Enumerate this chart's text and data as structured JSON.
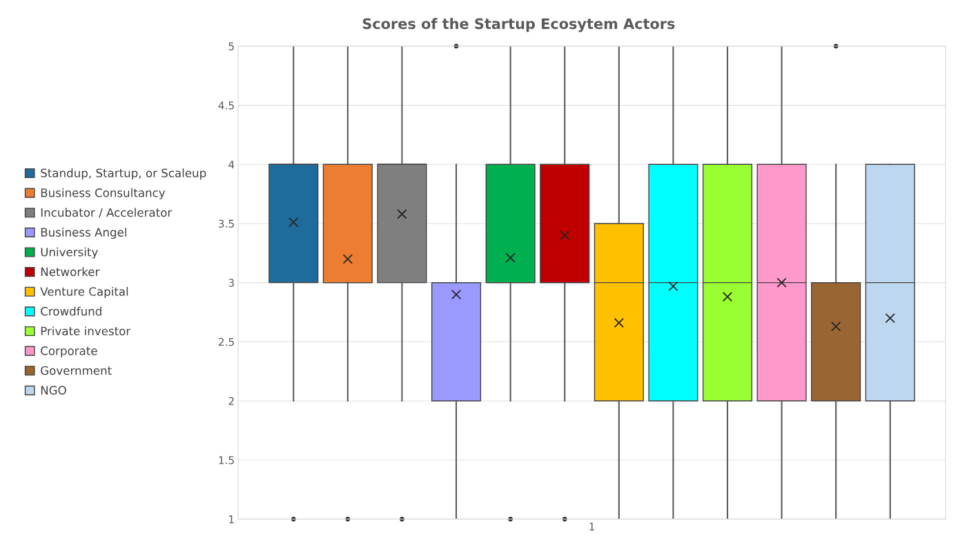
{
  "chart_data": {
    "type": "box",
    "title": "Scores of the Startup Ecosytem Actors",
    "categories": [
      "1"
    ],
    "ylim": [
      1,
      5
    ],
    "yticks": [
      1,
      1.5,
      2,
      2.5,
      3,
      3.5,
      4,
      4.5,
      5
    ],
    "grid": "y",
    "legend": "left",
    "series": [
      {
        "name": "Standup, Startup, or Scaleup",
        "color": "#1f6b9c",
        "boxes": [
          {
            "low": 2,
            "q1": 3,
            "median": 4,
            "q3": 4,
            "high": 5,
            "mean": 3.51,
            "outliers": [
              1
            ]
          }
        ]
      },
      {
        "name": "Business Consultancy",
        "color": "#ed7d31",
        "boxes": [
          {
            "low": 2,
            "q1": 3,
            "median": 3,
            "q3": 4,
            "high": 5,
            "mean": 3.2,
            "outliers": [
              1
            ]
          }
        ]
      },
      {
        "name": "Incubator / Accelerator",
        "color": "#7f7f7f",
        "boxes": [
          {
            "low": 2,
            "q1": 3,
            "median": 4,
            "q3": 4,
            "high": 5,
            "mean": 3.58,
            "outliers": [
              1
            ]
          }
        ]
      },
      {
        "name": "Business Angel",
        "color": "#9999ff",
        "boxes": [
          {
            "low": 1,
            "q1": 2,
            "median": 3,
            "q3": 3,
            "high": 4,
            "mean": 2.9,
            "outliers": [
              5
            ]
          }
        ]
      },
      {
        "name": "University",
        "color": "#00b050",
        "boxes": [
          {
            "low": 2,
            "q1": 3,
            "median": 3,
            "q3": 4,
            "high": 5,
            "mean": 3.21,
            "outliers": [
              1
            ]
          }
        ]
      },
      {
        "name": "Networker",
        "color": "#c00000",
        "boxes": [
          {
            "low": 2,
            "q1": 3,
            "median": 3,
            "q3": 4,
            "high": 5,
            "mean": 3.4,
            "outliers": [
              1
            ]
          }
        ]
      },
      {
        "name": "Venture Capital",
        "color": "#ffc000",
        "boxes": [
          {
            "low": 1,
            "q1": 2,
            "median": 3,
            "q3": 3.5,
            "high": 5,
            "mean": 2.66
          }
        ]
      },
      {
        "name": "Crowdfund",
        "color": "#00ffff",
        "boxes": [
          {
            "low": 1,
            "q1": 2,
            "median": 3,
            "q3": 4,
            "high": 5,
            "mean": 2.97
          }
        ]
      },
      {
        "name": "Private investor",
        "color": "#99ff33",
        "boxes": [
          {
            "low": 1,
            "q1": 2,
            "median": 3,
            "q3": 4,
            "high": 5,
            "mean": 2.88
          }
        ]
      },
      {
        "name": "Corporate",
        "color": "#ff99cc",
        "boxes": [
          {
            "low": 1,
            "q1": 2,
            "median": 3,
            "q3": 4,
            "high": 5,
            "mean": 3.0
          }
        ]
      },
      {
        "name": "Government",
        "color": "#996633",
        "boxes": [
          {
            "low": 1,
            "q1": 2,
            "median": 3,
            "q3": 3,
            "high": 4,
            "mean": 2.63,
            "outliers": [
              5
            ]
          }
        ]
      },
      {
        "name": "NGO",
        "color": "#bdd7ee",
        "boxes": [
          {
            "low": 1,
            "q1": 2,
            "median": 3,
            "q3": 4,
            "high": 4,
            "mean": 2.7
          }
        ]
      }
    ]
  }
}
